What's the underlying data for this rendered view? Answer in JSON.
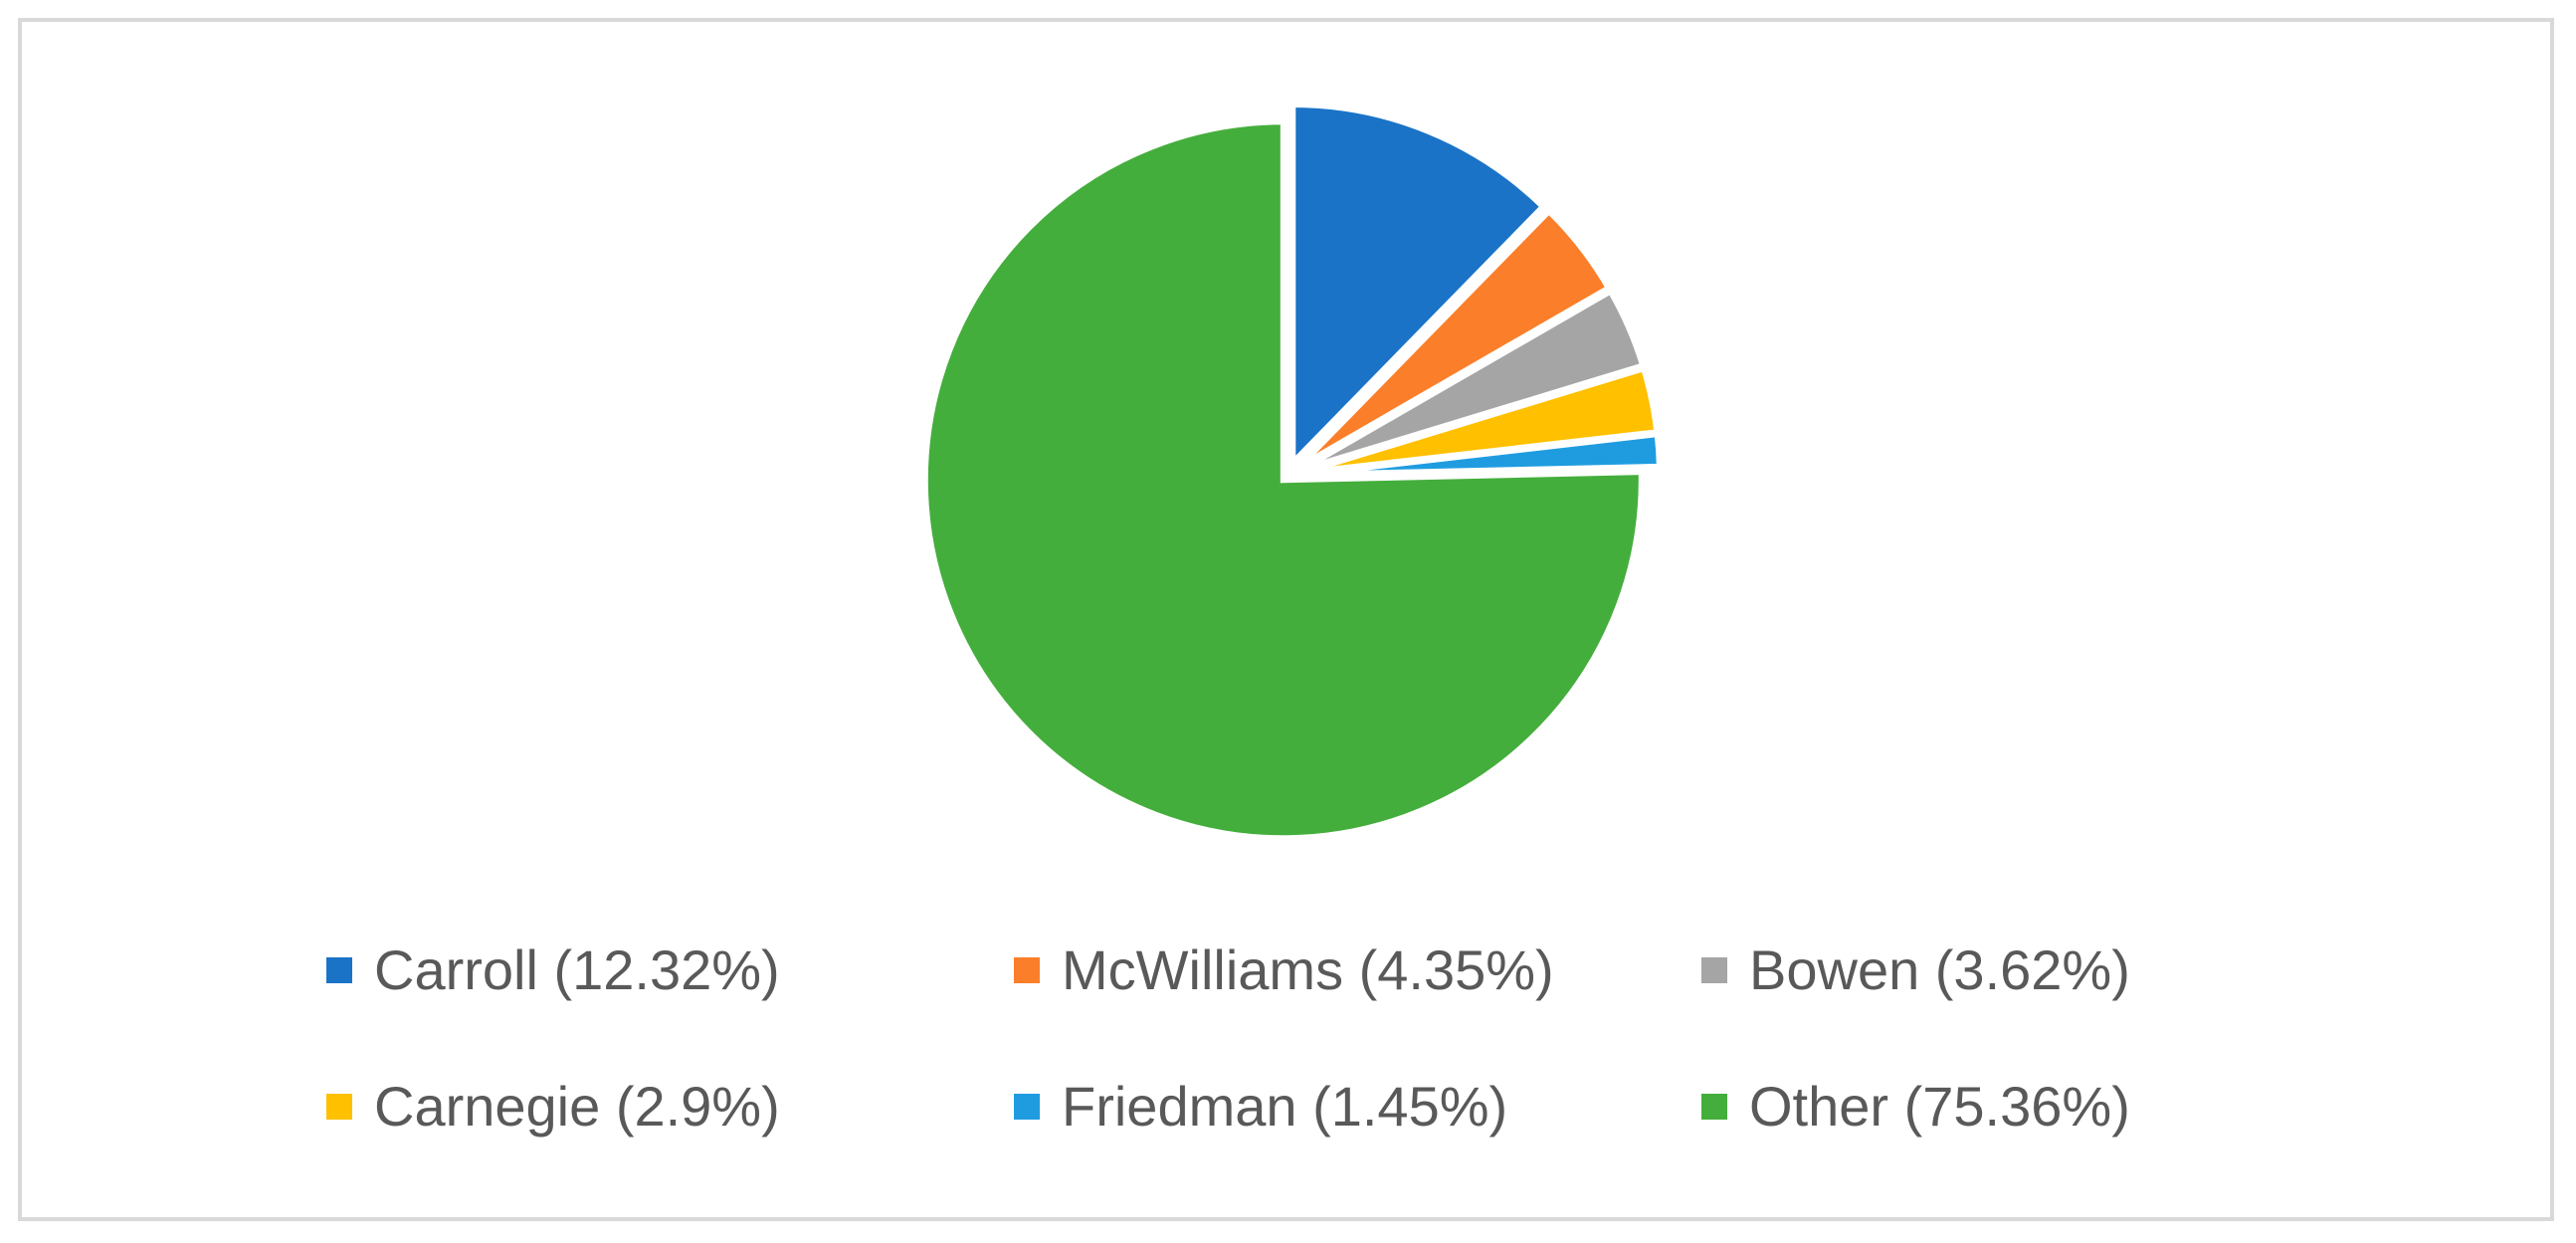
{
  "chart_data": {
    "type": "pie",
    "title": "",
    "start_angle_deg": 0,
    "direction": "clockwise",
    "exploded": true,
    "legend_position": "bottom",
    "slices": [
      {
        "label": "Carroll (12.32%)",
        "name": "Carroll",
        "value": 12.32,
        "color": "#1a73c7"
      },
      {
        "label": "McWilliams (4.35%)",
        "name": "McWilliams",
        "value": 4.35,
        "color": "#fb7f2a"
      },
      {
        "label": "Bowen (3.62%)",
        "name": "Bowen",
        "value": 3.62,
        "color": "#a5a5a5"
      },
      {
        "label": "Carnegie (2.9%)",
        "name": "Carnegie",
        "value": 2.9,
        "color": "#ffc000"
      },
      {
        "label": "Friedman (1.45%)",
        "name": "Friedman",
        "value": 1.45,
        "color": "#1f9ce0"
      },
      {
        "label": "Other (75.36%)",
        "name": "Other",
        "value": 75.36,
        "color": "#44ae3c"
      }
    ]
  }
}
